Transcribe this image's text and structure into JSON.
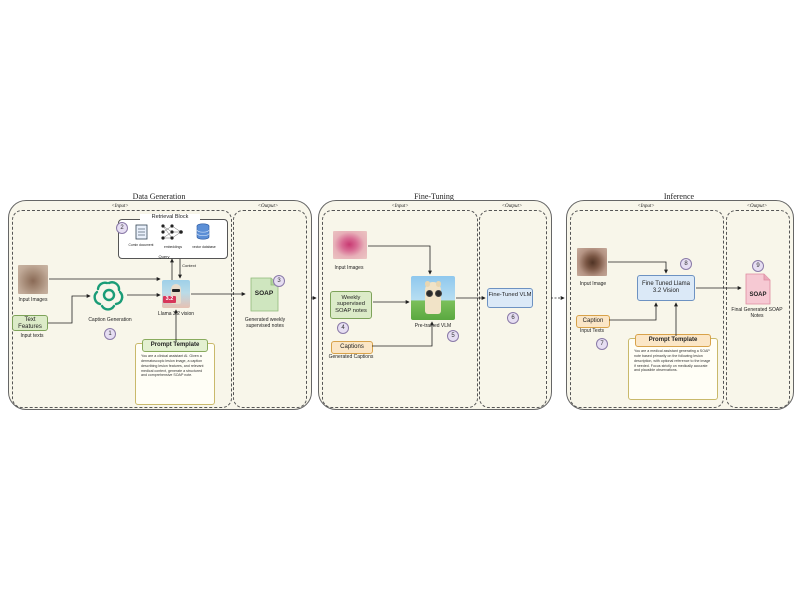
{
  "panels": {
    "data_generation": {
      "title": "Data Generation",
      "input_label": "<Input>",
      "output_label": "<Output>",
      "retrieval_title": "Retrieval Block",
      "retrieval_items": [
        "Cumin document",
        "embeddings",
        "vector database"
      ],
      "query_label": "Query",
      "context_label": "Context",
      "input_images_label": "Input Images",
      "text_features_label": "Text Features",
      "input_texts_label": "Input texts",
      "caption_generation_label": "Caption Generation",
      "model_label": "Llama 3.2 vision",
      "model_badge": "3.2",
      "soap_label": "SOAP",
      "output_caption": "Generated weekly supervised notes",
      "prompt_title": "Prompt Template",
      "prompt_text": "You are a clinical assistant AI. Given a dermatoscopic lesion image, a caption describing lesion features, and relevant medical context, generate a structured and comprehensive SOAP note.",
      "step_numbers": [
        "1",
        "2",
        "3"
      ]
    },
    "fine_tuning": {
      "title": "Fine-Tuning",
      "input_label": "<Input>",
      "output_label": "<Output>",
      "input_images_label": "Input Images",
      "weak_notes_label": "Weekly supervised SOAP notes",
      "captions_label": "Captions",
      "generated_captions_label": "Generated Captions",
      "model_label": "Pre-trained VLM",
      "output_label_box": "Fine-Tuned VLM",
      "step_numbers": [
        "4",
        "5",
        "6"
      ]
    },
    "inference": {
      "title": "Inference",
      "input_label": "<Input>",
      "output_label": "<Output>",
      "input_image_label": "Input Image",
      "caption_label": "Caption",
      "input_texts_label": "Input Texts",
      "model_label": "Fine Tuned Llama 3.2 Vision",
      "soap_label": "SOAP",
      "output_caption": "Final Generated SOAP Notes",
      "prompt_title": "Prompt Template",
      "prompt_text": "You are a medical assistant generating a SOAP note based primarily on the following lesion description, with optional reference to the image if needed. Focus strictly on medically accurate and plausible observations.",
      "step_numbers": [
        "7",
        "8",
        "9"
      ]
    }
  },
  "colors": {
    "panel_bg": "#f8f6ea",
    "green": "#dcebc8",
    "orange": "#fbe6c6",
    "blue": "#dbe9f7",
    "badge": "#e6def2"
  }
}
